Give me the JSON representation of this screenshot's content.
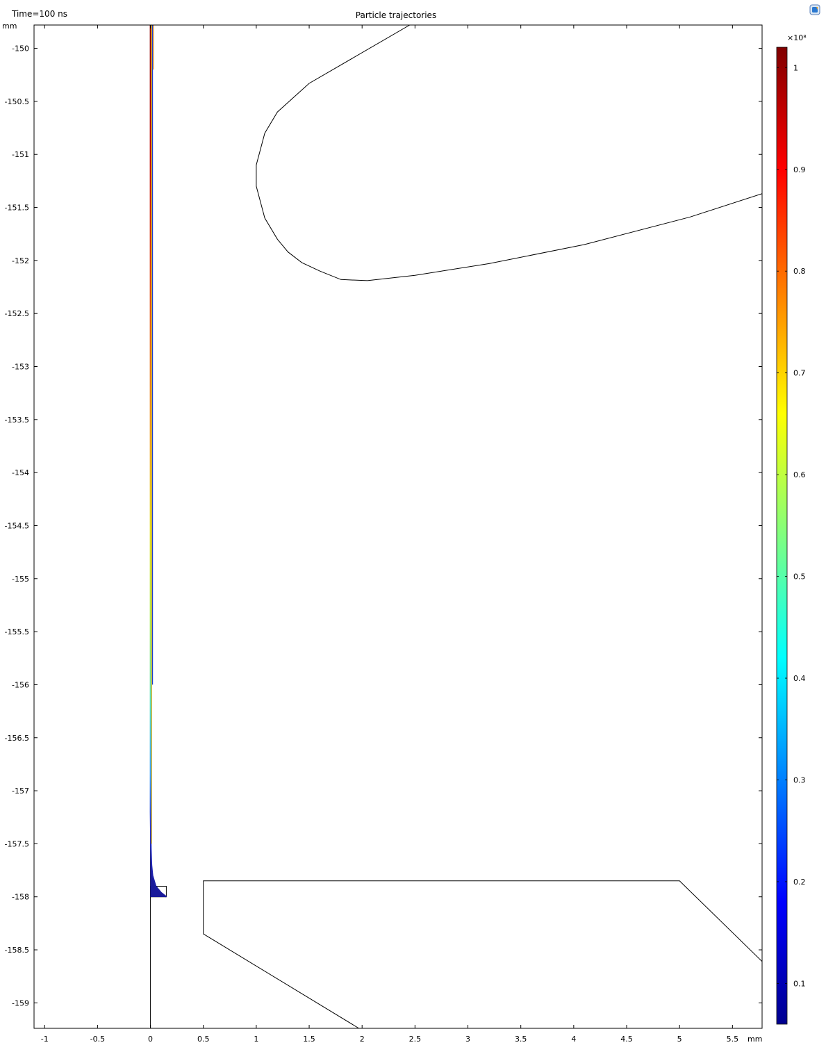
{
  "header": {
    "time_label": "Time=100 ns",
    "title": "Particle trajectories"
  },
  "chart_data": {
    "type": "line",
    "title": "Particle trajectories",
    "xlabel": "",
    "ylabel": "",
    "x_unit": "mm",
    "y_unit": "mm",
    "xlim": [
      -1.1,
      5.78
    ],
    "ylim": [
      -159.24,
      -149.78
    ],
    "x_ticks": [
      -1,
      -0.5,
      0,
      0.5,
      1,
      1.5,
      2,
      2.5,
      3,
      3.5,
      4,
      4.5,
      5,
      5.5
    ],
    "x_tick_labels": [
      "-1",
      "-0.5",
      "0",
      "0.5",
      "1",
      "1.5",
      "2",
      "2.5",
      "3",
      "3.5",
      "4",
      "4.5",
      "5",
      "5.5"
    ],
    "y_ticks": [
      -150,
      -150.5,
      -151,
      -151.5,
      -152,
      -152.5,
      -153,
      -153.5,
      -154,
      -154.5,
      -155,
      -155.5,
      -156,
      -156.5,
      -157,
      -157.5,
      -158,
      -158.5,
      -159
    ],
    "y_tick_labels": [
      "-150",
      "-150.5",
      "-151",
      "-151.5",
      "-152",
      "-152.5",
      "-153",
      "-153.5",
      "-154",
      "-154.5",
      "-155",
      "-155.5",
      "-156",
      "-156.5",
      "-157",
      "-157.5",
      "-158",
      "-158.5",
      "-159"
    ],
    "geometry": {
      "upper_electrode": [
        [
          2.45,
          -149.78
        ],
        [
          1.5,
          -150.33
        ],
        [
          1.2,
          -150.6
        ],
        [
          1.08,
          -150.8
        ],
        [
          1.0,
          -151.1
        ],
        [
          1.0,
          -151.3
        ],
        [
          1.08,
          -151.6
        ],
        [
          1.2,
          -151.8
        ],
        [
          1.3,
          -151.92
        ],
        [
          1.43,
          -152.02
        ],
        [
          1.6,
          -152.1
        ],
        [
          1.8,
          -152.18
        ],
        [
          2.05,
          -152.19
        ],
        [
          2.5,
          -152.14
        ],
        [
          3.2,
          -152.03
        ],
        [
          4.1,
          -151.85
        ],
        [
          5.1,
          -151.59
        ],
        [
          5.78,
          -151.37
        ]
      ],
      "lower_electrode": [
        [
          1.97,
          -159.24
        ],
        [
          0.5,
          -158.35
        ],
        [
          0.5,
          -157.85
        ],
        [
          5.0,
          -157.85
        ],
        [
          5.78,
          -158.61
        ]
      ],
      "axis_line": [
        [
          0,
          -159.24
        ],
        [
          0,
          -149.78
        ]
      ],
      "emitter": [
        [
          0,
          -157.9
        ],
        [
          0.15,
          -157.9
        ],
        [
          0.15,
          -158.0
        ],
        [
          0,
          -158.0
        ]
      ]
    },
    "trajectories": [
      {
        "x": [
          0.0,
          0.0,
          0.005,
          0.01,
          0.02,
          0.05,
          0.1,
          0.15
        ],
        "y": [
          -149.78,
          -157.2,
          -157.55,
          -157.7,
          -157.8,
          -157.9,
          -157.96,
          -158.0
        ]
      },
      {
        "x": [
          0.01,
          0.01
        ],
        "y": [
          -149.78,
          -157.5
        ]
      },
      {
        "x": [
          0.02,
          0.02
        ],
        "y": [
          -149.78,
          -156.0
        ]
      },
      {
        "x": [
          0.03,
          0.03
        ],
        "y": [
          -149.78,
          -150.2
        ]
      }
    ],
    "colorbar": {
      "exponent_label": "×10⁸",
      "min": 0.06,
      "max": 1.02,
      "ticks": [
        1,
        0.9,
        0.8,
        0.7,
        0.6,
        0.5,
        0.4,
        0.3,
        0.2,
        0.1
      ],
      "tick_labels": [
        "1",
        "0.9",
        "0.8",
        "0.7",
        "0.6",
        "0.5",
        "0.4",
        "0.3",
        "0.2",
        "0.1"
      ],
      "colormap": "jet"
    }
  }
}
